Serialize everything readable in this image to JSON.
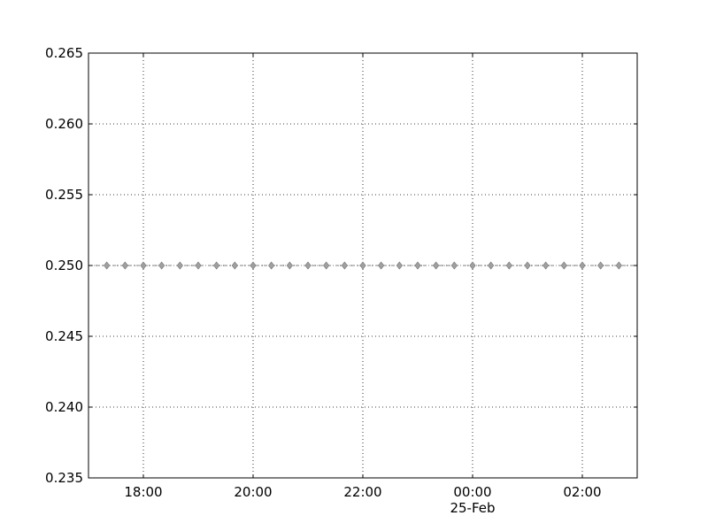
{
  "chart_data": {
    "type": "line",
    "title": "",
    "xlabel": "",
    "ylabel": "",
    "x_axis": {
      "type": "time",
      "range": [
        "2011-02-24 17:00",
        "2011-02-25 03:00"
      ],
      "ticks": [
        {
          "time": "2011-02-24 18:00",
          "label": "18:00"
        },
        {
          "time": "2011-02-24 20:00",
          "label": "20:00"
        },
        {
          "time": "2011-02-24 22:00",
          "label": "22:00"
        },
        {
          "time": "2011-02-25 00:00",
          "label": "00:00",
          "sublabel": "25-Feb"
        },
        {
          "time": "2011-02-25 02:00",
          "label": "02:00"
        }
      ]
    },
    "y_axis": {
      "range": [
        0.235,
        0.265
      ],
      "ticks": [
        "0.235",
        "0.240",
        "0.245",
        "0.250",
        "0.255",
        "0.260",
        "0.265"
      ]
    },
    "grid": true,
    "series": [
      {
        "marker": "diamond",
        "line_style": "dash-dot",
        "color": "#808080",
        "points": [
          {
            "x": "2011-02-24 17:20",
            "y": 0.25
          },
          {
            "x": "2011-02-24 17:40",
            "y": 0.25
          },
          {
            "x": "2011-02-24 18:00",
            "y": 0.25
          },
          {
            "x": "2011-02-24 18:20",
            "y": 0.25
          },
          {
            "x": "2011-02-24 18:40",
            "y": 0.25
          },
          {
            "x": "2011-02-24 19:00",
            "y": 0.25
          },
          {
            "x": "2011-02-24 19:20",
            "y": 0.25
          },
          {
            "x": "2011-02-24 19:40",
            "y": 0.25
          },
          {
            "x": "2011-02-24 20:00",
            "y": 0.25
          },
          {
            "x": "2011-02-24 20:20",
            "y": 0.25
          },
          {
            "x": "2011-02-24 20:40",
            "y": 0.25
          },
          {
            "x": "2011-02-24 21:00",
            "y": 0.25
          },
          {
            "x": "2011-02-24 21:20",
            "y": 0.25
          },
          {
            "x": "2011-02-24 21:40",
            "y": 0.25
          },
          {
            "x": "2011-02-24 22:00",
            "y": 0.25
          },
          {
            "x": "2011-02-24 22:20",
            "y": 0.25
          },
          {
            "x": "2011-02-24 22:40",
            "y": 0.25
          },
          {
            "x": "2011-02-24 23:00",
            "y": 0.25
          },
          {
            "x": "2011-02-24 23:20",
            "y": 0.25
          },
          {
            "x": "2011-02-24 23:40",
            "y": 0.25
          },
          {
            "x": "2011-02-25 00:00",
            "y": 0.25
          },
          {
            "x": "2011-02-25 00:20",
            "y": 0.25
          },
          {
            "x": "2011-02-25 00:40",
            "y": 0.25
          },
          {
            "x": "2011-02-25 01:00",
            "y": 0.25
          },
          {
            "x": "2011-02-25 01:20",
            "y": 0.25
          },
          {
            "x": "2011-02-25 01:40",
            "y": 0.25
          },
          {
            "x": "2011-02-25 02:00",
            "y": 0.25
          },
          {
            "x": "2011-02-25 02:20",
            "y": 0.25
          },
          {
            "x": "2011-02-25 02:40",
            "y": 0.25
          }
        ]
      }
    ],
    "colors": {
      "grid": "#000000",
      "axes": "#000000",
      "marker_fill": "#a0a0a0",
      "marker_edge": "#707070"
    }
  }
}
